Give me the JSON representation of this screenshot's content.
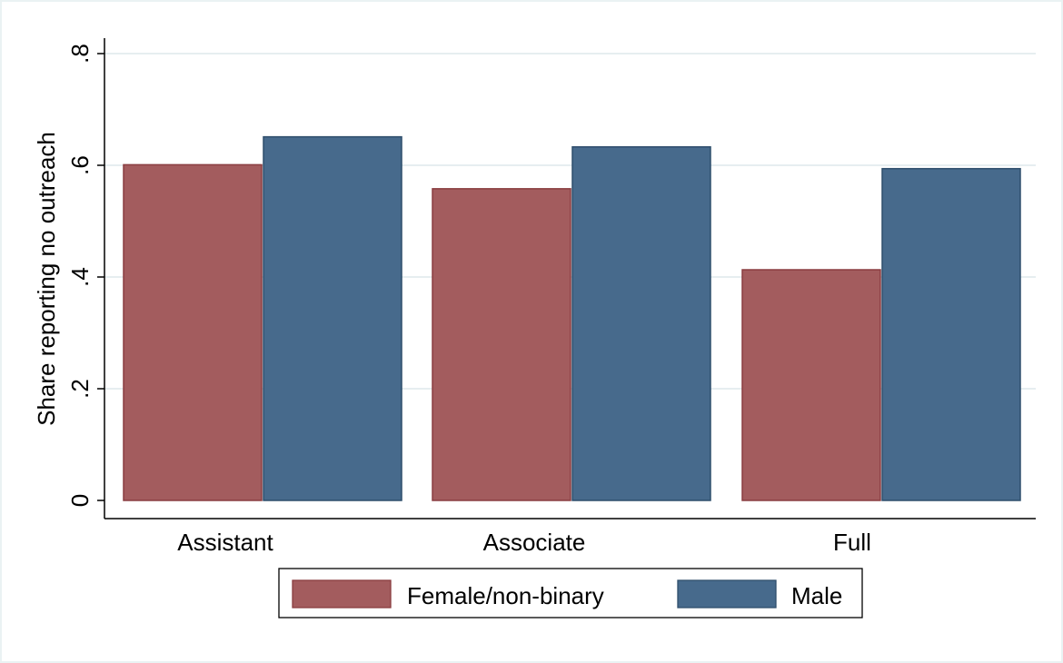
{
  "chart_data": {
    "type": "bar",
    "ylabel": "Share reporting no outreach",
    "xlabel": "",
    "ylim": [
      0,
      0.8
    ],
    "yticks": [
      0,
      0.2,
      0.4,
      0.6,
      0.8
    ],
    "ytick_labels": [
      "0",
      ".2",
      ".4",
      ".6",
      ".8"
    ],
    "grid": true,
    "legend_position": "bottom",
    "categories": [
      "Assistant",
      "Associate",
      "Full"
    ],
    "series": [
      {
        "name": "Female/non-binary",
        "color": "#a35c5e",
        "values": [
          0.601,
          0.558,
          0.413
        ]
      },
      {
        "name": "Male",
        "color": "#476a8c",
        "values": [
          0.651,
          0.633,
          0.594
        ]
      }
    ]
  }
}
